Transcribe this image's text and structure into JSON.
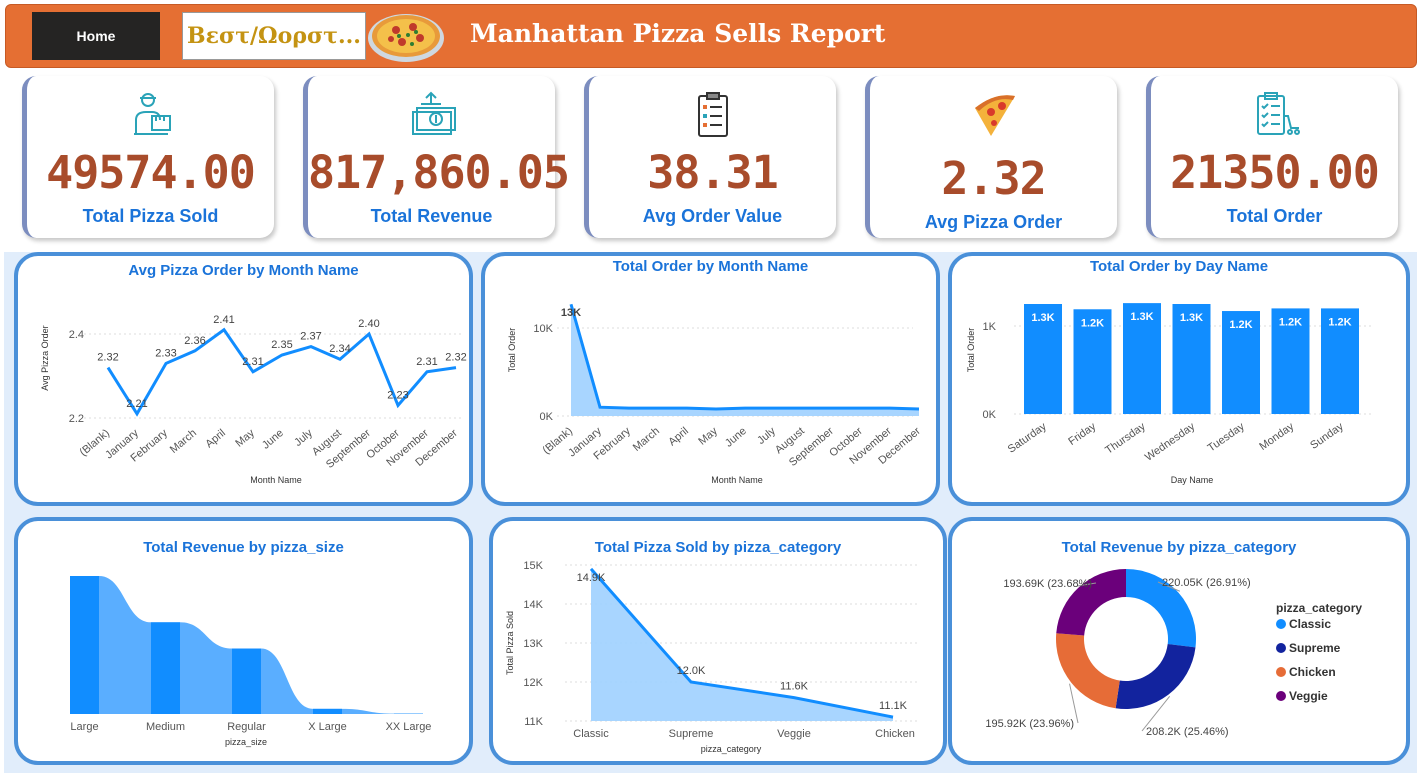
{
  "header": {
    "home_label": "Home",
    "best_worst_label": "Βεστ/Ωορστ...",
    "title": "Manhattan Pizza Sells Report"
  },
  "kpis": [
    {
      "value": "49574.00",
      "label": "Total Pizza Sold",
      "icon": "delivery-person-icon"
    },
    {
      "value": "817,860.05",
      "label": "Total Revenue",
      "icon": "money-icon"
    },
    {
      "value": "38.31",
      "label": "Avg Order Value",
      "icon": "clipboard-icon"
    },
    {
      "value": "2.32",
      "label": "Avg Pizza Order",
      "icon": "pizza-slice-icon"
    },
    {
      "value": "21350.00",
      "label": "Total Order",
      "icon": "checklist-icon"
    }
  ],
  "colors": {
    "header": "#e56f33",
    "kpi_value": "#a84c2b",
    "title_blue": "#1a73d9",
    "series_blue": "#118dff",
    "classic": "#118dff",
    "supreme": "#12239e",
    "chicken": "#e66c37",
    "veggie": "#6b007b"
  },
  "chart_data": [
    {
      "type": "line",
      "title": "Avg Pizza Order by Month Name",
      "xlabel": "Month Name",
      "ylabel": "Avg Pizza Order",
      "categories": [
        "(Blank)",
        "January",
        "February",
        "March",
        "April",
        "May",
        "June",
        "July",
        "August",
        "September",
        "October",
        "November",
        "December"
      ],
      "values": [
        2.32,
        2.21,
        2.33,
        2.36,
        2.41,
        2.31,
        2.35,
        2.37,
        2.34,
        2.4,
        2.23,
        2.31,
        2.32
      ],
      "labels": [
        "2.32",
        "2.21",
        "2.33",
        "2.36",
        "2.41",
        "2.31",
        "2.35",
        "2.37",
        "2.34",
        "2.40",
        "2.23",
        "2.31",
        "2.32"
      ],
      "yticks": [
        {
          "v": 2.2,
          "t": "2.2"
        },
        {
          "v": 2.4,
          "t": "2.4"
        }
      ],
      "ylim": [
        2.2,
        2.4
      ]
    },
    {
      "type": "area",
      "title": "Total Order by Month Name",
      "xlabel": "Month Name",
      "ylabel": "Total Order",
      "categories": [
        "(Blank)",
        "January",
        "February",
        "March",
        "April",
        "May",
        "June",
        "July",
        "August",
        "September",
        "October",
        "November",
        "December"
      ],
      "values": [
        12700,
        1000,
        900,
        900,
        900,
        800,
        900,
        900,
        900,
        900,
        900,
        900,
        800
      ],
      "labels": [
        "13K"
      ],
      "yticks": [
        {
          "v": 0,
          "t": "0K"
        },
        {
          "v": 10000,
          "t": "10K"
        }
      ],
      "ylim": [
        0,
        10000
      ]
    },
    {
      "type": "bar",
      "title": "Total Order by Day Name",
      "xlabel": "Day Name",
      "ylabel": "Total Order",
      "categories": [
        "Saturday",
        "Friday",
        "Thursday",
        "Wednesday",
        "Tuesday",
        "Monday",
        "Sunday"
      ],
      "values": [
        1250,
        1190,
        1260,
        1250,
        1170,
        1200,
        1200
      ],
      "labels": [
        "1.3K",
        "1.2K",
        "1.3K",
        "1.3K",
        "1.2K",
        "1.2K",
        "1.2K"
      ],
      "yticks": [
        {
          "v": 0,
          "t": "0K"
        },
        {
          "v": 1000,
          "t": "1K"
        }
      ],
      "ylim": [
        0,
        1000
      ]
    },
    {
      "type": "area",
      "title": "Total Revenue by pizza_size",
      "xlabel": "pizza_size",
      "categories": [
        "Large",
        "Medium",
        "Regular",
        "X Large",
        "XX Large"
      ],
      "values": [
        375318,
        249382,
        178076,
        14076,
        1007
      ]
    },
    {
      "type": "area",
      "title": "Total Pizza Sold by pizza_category",
      "xlabel": "pizza_category",
      "ylabel": "Total Pizza Sold",
      "categories": [
        "Classic",
        "Supreme",
        "Veggie",
        "Chicken"
      ],
      "values": [
        14900,
        12000,
        11600,
        11100
      ],
      "labels": [
        "14.9K",
        "12.0K",
        "11.6K",
        "11.1K"
      ],
      "yticks": [
        {
          "v": 11000,
          "t": "11K"
        },
        {
          "v": 12000,
          "t": "12K"
        },
        {
          "v": 13000,
          "t": "13K"
        },
        {
          "v": 14000,
          "t": "14K"
        },
        {
          "v": 15000,
          "t": "15K"
        }
      ],
      "ylim": [
        11000,
        15000
      ]
    },
    {
      "type": "pie",
      "title": "Total Revenue by pizza_category",
      "legend_title": "pizza_category",
      "legend_position": "right",
      "categories": [
        "Classic",
        "Supreme",
        "Chicken",
        "Veggie"
      ],
      "values": [
        26.91,
        25.46,
        23.96,
        23.68
      ],
      "labels": [
        "220.05K (26.91%)",
        "208.2K (25.46%)",
        "195.92K (23.96%)",
        "193.69K (23.68%)"
      ]
    }
  ]
}
